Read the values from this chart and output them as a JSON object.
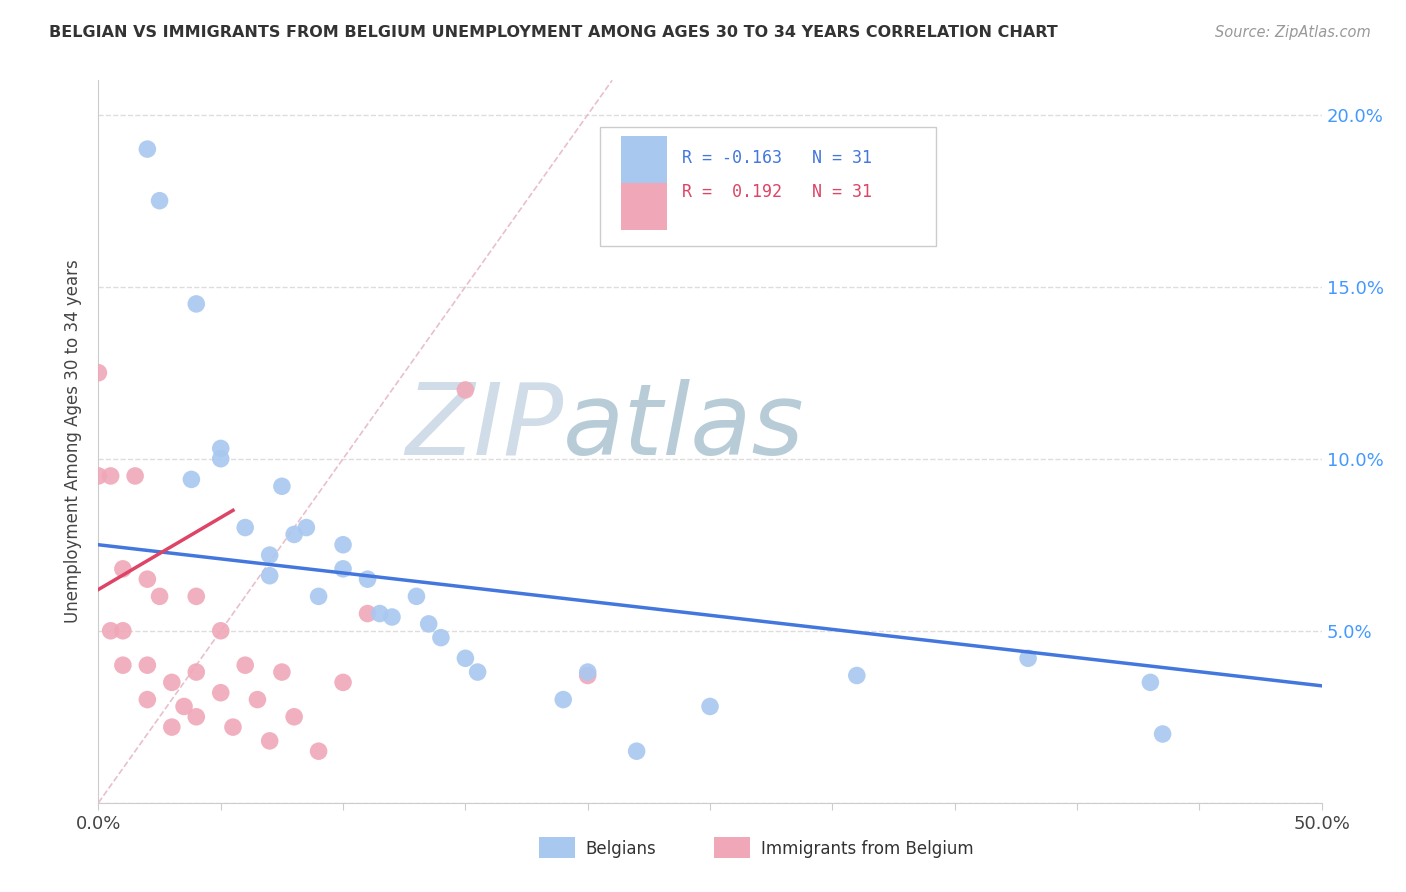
{
  "title": "BELGIAN VS IMMIGRANTS FROM BELGIUM UNEMPLOYMENT AMONG AGES 30 TO 34 YEARS CORRELATION CHART",
  "source": "Source: ZipAtlas.com",
  "ylabel": "Unemployment Among Ages 30 to 34 years",
  "xlim": [
    0,
    0.5
  ],
  "ylim": [
    0,
    0.21
  ],
  "xticks": [
    0.0,
    0.05,
    0.1,
    0.15,
    0.2,
    0.25,
    0.3,
    0.35,
    0.4,
    0.45,
    0.5
  ],
  "yticks_right": [
    0.0,
    0.05,
    0.1,
    0.15,
    0.2
  ],
  "ytick_labels_right": [
    "",
    "5.0%",
    "10.0%",
    "15.0%",
    "20.0%"
  ],
  "legend_blue_r": "R = -0.163",
  "legend_blue_n": "N = 31",
  "legend_pink_r": "R =  0.192",
  "legend_pink_n": "N = 31",
  "legend_label_blue": "Belgians",
  "legend_label_pink": "Immigrants from Belgium",
  "watermark_zip": "ZIP",
  "watermark_atlas": "atlas",
  "watermark_color_zip": "#d0dce8",
  "watermark_color_atlas": "#b8ccd8",
  "blue_color": "#a8c8f0",
  "pink_color": "#f0a8b8",
  "blue_line_color": "#4477dd",
  "pink_line_color": "#dd4466",
  "diag_line_color": "#e8c0cc",
  "blue_scatter_x": [
    0.02,
    0.025,
    0.04,
    0.038,
    0.05,
    0.05,
    0.06,
    0.07,
    0.07,
    0.075,
    0.08,
    0.085,
    0.09,
    0.1,
    0.1,
    0.11,
    0.115,
    0.12,
    0.13,
    0.135,
    0.14,
    0.15,
    0.155,
    0.19,
    0.2,
    0.22,
    0.25,
    0.31,
    0.38,
    0.43,
    0.435
  ],
  "blue_scatter_y": [
    0.19,
    0.175,
    0.145,
    0.094,
    0.103,
    0.1,
    0.08,
    0.072,
    0.066,
    0.092,
    0.078,
    0.08,
    0.06,
    0.068,
    0.075,
    0.065,
    0.055,
    0.054,
    0.06,
    0.052,
    0.048,
    0.042,
    0.038,
    0.03,
    0.038,
    0.015,
    0.028,
    0.037,
    0.042,
    0.035,
    0.02
  ],
  "pink_scatter_x": [
    0.0,
    0.0,
    0.005,
    0.005,
    0.01,
    0.01,
    0.01,
    0.015,
    0.02,
    0.02,
    0.02,
    0.025,
    0.03,
    0.03,
    0.035,
    0.04,
    0.04,
    0.04,
    0.05,
    0.05,
    0.055,
    0.06,
    0.065,
    0.07,
    0.075,
    0.08,
    0.09,
    0.1,
    0.11,
    0.15,
    0.2
  ],
  "pink_scatter_y": [
    0.125,
    0.095,
    0.095,
    0.05,
    0.068,
    0.05,
    0.04,
    0.095,
    0.065,
    0.04,
    0.03,
    0.06,
    0.035,
    0.022,
    0.028,
    0.06,
    0.038,
    0.025,
    0.05,
    0.032,
    0.022,
    0.04,
    0.03,
    0.018,
    0.038,
    0.025,
    0.015,
    0.035,
    0.055,
    0.12,
    0.037
  ],
  "blue_trend_x": [
    0.0,
    0.5
  ],
  "blue_trend_y": [
    0.075,
    0.034
  ],
  "pink_trend_x": [
    0.0,
    0.055
  ],
  "pink_trend_y": [
    0.062,
    0.085
  ],
  "diag_line_x": [
    0.0,
    0.21
  ],
  "diag_line_y": [
    0.0,
    0.21
  ]
}
